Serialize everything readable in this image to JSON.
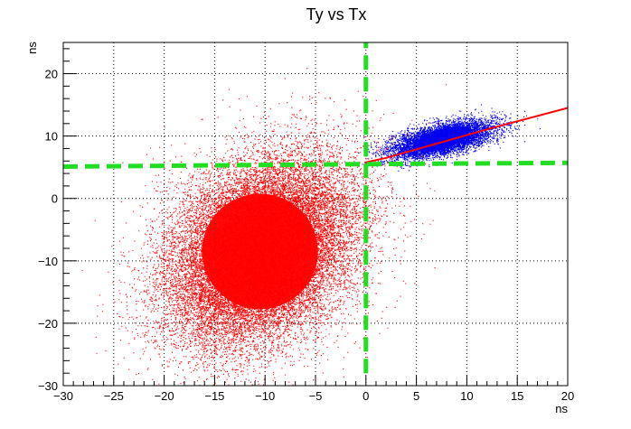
{
  "chart_data": {
    "type": "scatter",
    "title": "Ty vs Tx",
    "xlabel": "ns",
    "ylabel": "ns",
    "xlim": [
      -30,
      20
    ],
    "ylim": [
      -30,
      25
    ],
    "grid": true,
    "grid_style": "dotted",
    "x_ticks": [
      -30,
      -25,
      -20,
      -15,
      -10,
      -5,
      0,
      5,
      10,
      15,
      20
    ],
    "y_ticks": [
      -30,
      -20,
      -10,
      0,
      10,
      20
    ],
    "x_tick_labels": [
      "−30",
      "−25",
      "−20",
      "−15",
      "−10",
      "−5",
      "0",
      "5",
      "10",
      "15",
      "20"
    ],
    "y_tick_labels": [
      "−30",
      "−20",
      "−10",
      "0",
      "10",
      "20"
    ],
    "series": [
      {
        "color": "#0000ee",
        "kind": "point-cloud",
        "center": [
          7.5,
          9.5
        ],
        "spread": [
          2.6,
          1.5
        ],
        "correlation": 0.6
      },
      {
        "color": "#ff0000",
        "kind": "point-cloud",
        "center": [
          -10.5,
          -8.5
        ],
        "spread": [
          4.6,
          7.4
        ],
        "correlation": 0.3
      }
    ],
    "lines": [
      {
        "color": "#ff0000",
        "style": "solid",
        "points": [
          [
            0,
            5.8
          ],
          [
            2,
            6.5
          ],
          [
            12.5,
            11.3
          ],
          [
            20,
            14.5
          ]
        ]
      },
      {
        "color": "#22dd22",
        "style": "dashed",
        "points": [
          [
            0,
            -28
          ],
          [
            0,
            25
          ]
        ]
      },
      {
        "color": "#22dd22",
        "style": "dashed",
        "points": [
          [
            -30,
            5.1
          ],
          [
            0,
            5.5
          ],
          [
            20,
            5.7
          ]
        ]
      }
    ]
  }
}
